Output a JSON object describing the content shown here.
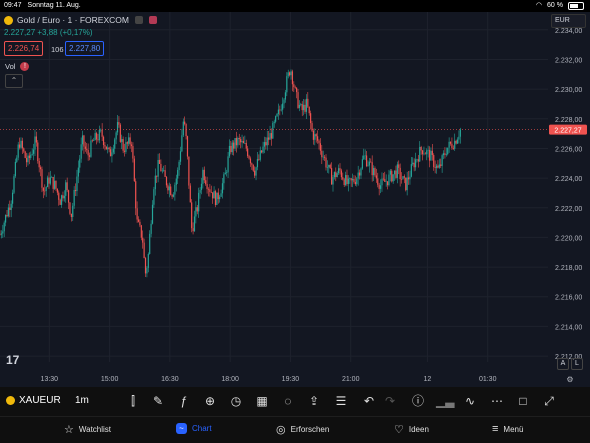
{
  "status_bar": {
    "time": "09:47",
    "date": "Sonntag 11. Aug.",
    "battery": "60 %"
  },
  "legend": {
    "title": "Gold / Euro · 1 · FOREXCOM",
    "price_change": "2.227,27 +3,88 (+0,17%)",
    "sell": "2.226,74",
    "spread": "106",
    "buy": "2.227,80",
    "volume_label": "Vol"
  },
  "currency": "EUR",
  "colors": {
    "up": "#26a69a",
    "down": "#ef5350",
    "background": "#131722",
    "accent": "#2962ff"
  },
  "chart_data": {
    "type": "candlestick",
    "last_price": "2.227,27",
    "x_ticks": [
      "13:30",
      "15:00",
      "16:30",
      "18:00",
      "19:30",
      "21:00",
      "12",
      "01:30"
    ],
    "y_ticks": [
      "2.234,00",
      "2.232,00",
      "2.230,00",
      "2.228,00",
      "2.226,00",
      "2.224,00",
      "2.222,00",
      "2.220,00",
      "2.218,00",
      "2.216,00",
      "2.214,00",
      "2.212,00"
    ],
    "ylim": [
      2211.6,
      2235.2
    ],
    "close_path": [
      [
        0.0,
        2220.2
      ],
      [
        0.02,
        2222.5
      ],
      [
        0.035,
        2226.5
      ],
      [
        0.05,
        2225.0
      ],
      [
        0.065,
        2226.5
      ],
      [
        0.08,
        2223.0
      ],
      [
        0.09,
        2224.0
      ],
      [
        0.1,
        2223.5
      ],
      [
        0.11,
        2222.5
      ],
      [
        0.12,
        2223.5
      ],
      [
        0.13,
        2221.5
      ],
      [
        0.15,
        2226.5
      ],
      [
        0.16,
        2225.5
      ],
      [
        0.17,
        2226.5
      ],
      [
        0.185,
        2227.0
      ],
      [
        0.2,
        2225.5
      ],
      [
        0.215,
        2227.5
      ],
      [
        0.225,
        2226.0
      ],
      [
        0.24,
        2226.5
      ],
      [
        0.25,
        2221.0
      ],
      [
        0.26,
        2220.0
      ],
      [
        0.265,
        2217.5
      ],
      [
        0.27,
        2218.5
      ],
      [
        0.28,
        2223.5
      ],
      [
        0.29,
        2225.0
      ],
      [
        0.3,
        2224.0
      ],
      [
        0.315,
        2223.0
      ],
      [
        0.325,
        2224.5
      ],
      [
        0.335,
        2228.0
      ],
      [
        0.34,
        2226.5
      ],
      [
        0.35,
        2220.5
      ],
      [
        0.36,
        2222.0
      ],
      [
        0.37,
        2224.5
      ],
      [
        0.38,
        2223.5
      ],
      [
        0.395,
        2222.5
      ],
      [
        0.41,
        2224.0
      ],
      [
        0.42,
        2226.0
      ],
      [
        0.435,
        2226.5
      ],
      [
        0.45,
        2226.0
      ],
      [
        0.465,
        2224.5
      ],
      [
        0.48,
        2226.0
      ],
      [
        0.495,
        2227.0
      ],
      [
        0.51,
        2228.5
      ],
      [
        0.52,
        2230.0
      ],
      [
        0.53,
        2231.5
      ],
      [
        0.54,
        2229.5
      ],
      [
        0.55,
        2228.5
      ],
      [
        0.56,
        2229.0
      ],
      [
        0.57,
        2227.0
      ],
      [
        0.58,
        2226.5
      ],
      [
        0.59,
        2225.5
      ],
      [
        0.605,
        2224.0
      ],
      [
        0.62,
        2224.5
      ],
      [
        0.635,
        2223.5
      ],
      [
        0.65,
        2224.0
      ],
      [
        0.665,
        2225.5
      ],
      [
        0.68,
        2224.5
      ],
      [
        0.695,
        2223.5
      ],
      [
        0.71,
        2224.0
      ],
      [
        0.725,
        2224.5
      ],
      [
        0.74,
        2223.5
      ],
      [
        0.755,
        2225.0
      ],
      [
        0.77,
        2226.0
      ],
      [
        0.785,
        2225.5
      ],
      [
        0.8,
        2224.5
      ],
      [
        0.815,
        2226.0
      ],
      [
        0.83,
        2226.5
      ],
      [
        0.84,
        2227.27
      ]
    ]
  },
  "toolbar": {
    "symbol": "XAUEUR",
    "timeframe": "1m"
  },
  "nav": [
    {
      "label": "Watchlist",
      "icon": "star-icon"
    },
    {
      "label": "Chart",
      "icon": "chart-icon"
    },
    {
      "label": "Erforschen",
      "icon": "compass-icon"
    },
    {
      "label": "Ideen",
      "icon": "bulb-icon"
    },
    {
      "label": "Menü",
      "icon": "menu-icon"
    }
  ]
}
